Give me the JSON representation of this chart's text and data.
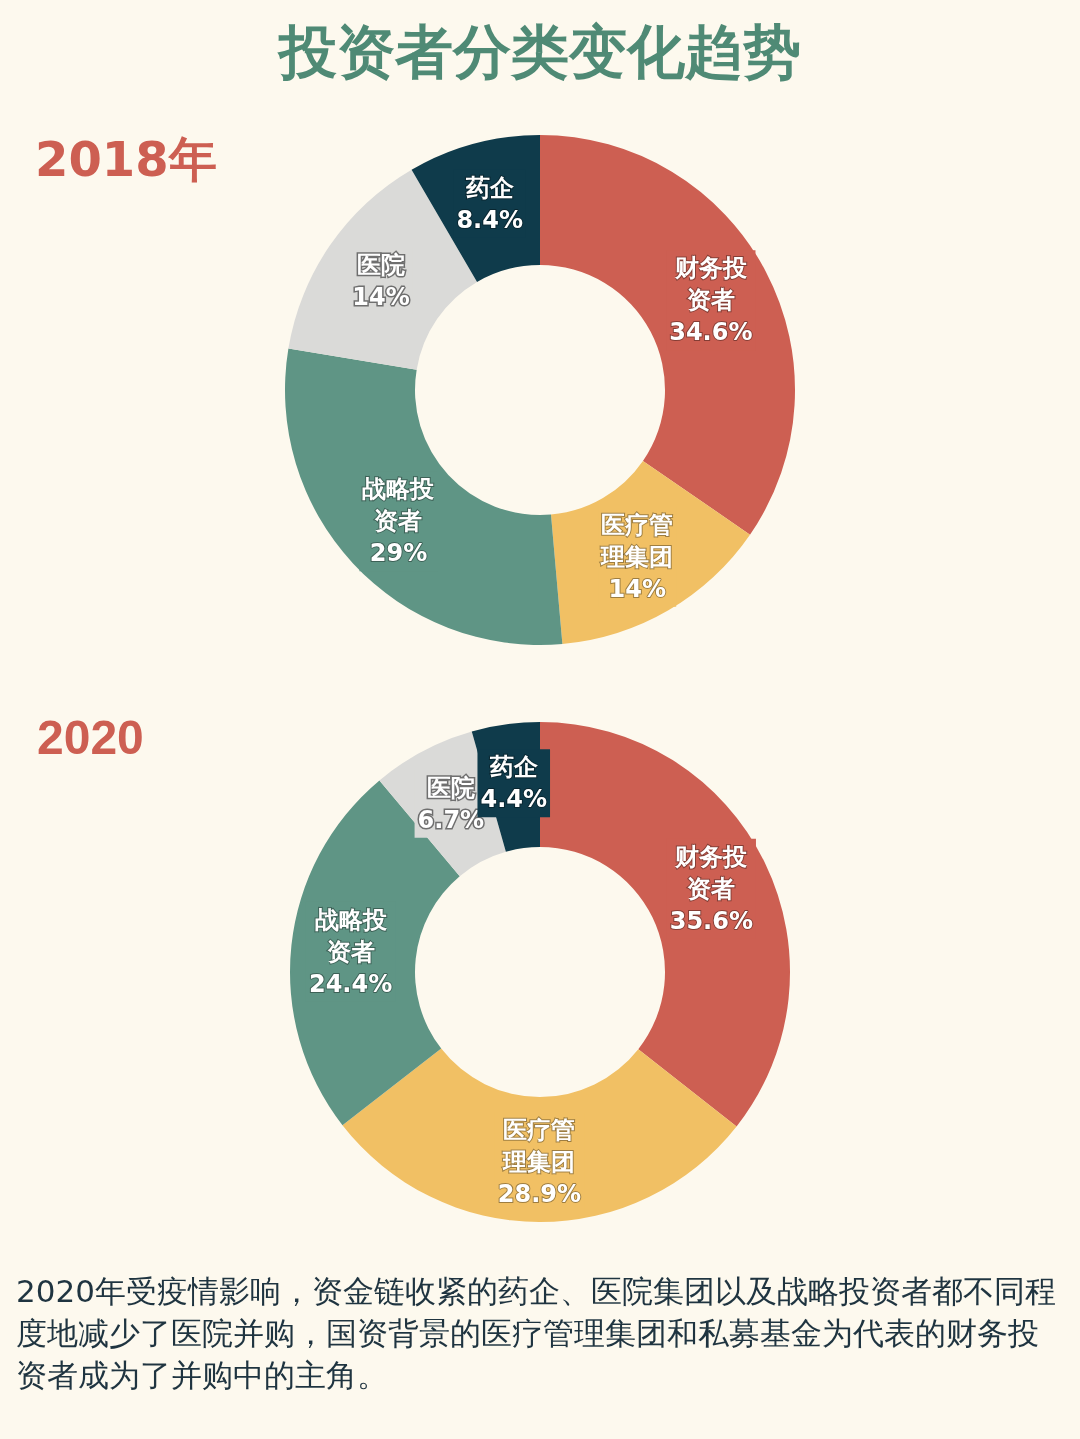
{
  "chart_data": [
    {
      "type": "donut",
      "title": "投资者分类变化趋势",
      "subtitle": "2018年",
      "categories": [
        "财务投资者",
        "医疗管理集团",
        "战略投资者",
        "医院",
        "药企"
      ],
      "values": [
        34.6,
        14,
        29,
        14,
        8.4
      ],
      "value_labels": [
        "34.6%",
        "14%",
        "29%",
        "14%",
        "8.4%"
      ],
      "colors": [
        "#cd5f52",
        "#f1c064",
        "#5f9585",
        "#dadad8",
        "#0f3b4b"
      ],
      "legend": false
    },
    {
      "type": "donut",
      "title": "2020",
      "categories": [
        "财务投资者",
        "医疗管理集团",
        "战略投资者",
        "医院",
        "药企"
      ],
      "values": [
        35.6,
        28.9,
        24.4,
        6.7,
        4.4
      ],
      "value_labels": [
        "35.6%",
        "28.9%",
        "24.4%",
        "6.7%",
        "4.4%"
      ],
      "colors": [
        "#cd5f52",
        "#f1c064",
        "#5f9585",
        "#dadad8",
        "#0f3b4b"
      ],
      "legend": false,
      "annotations": [
        "2020年受疫情影响，资金链收紧的药企、医院集团以及战略投资者都不同程度地减少了医院并购，国资背景的医疗管理集团和私募基金为代表的财务投资者成为了并购中的主角。"
      ]
    }
  ]
}
